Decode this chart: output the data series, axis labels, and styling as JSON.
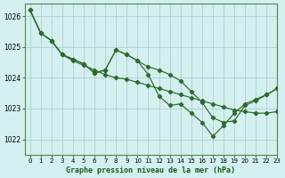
{
  "title": "Graphe pression niveau de la mer (hPa)",
  "bg_color": "#d4efef",
  "grid_color": "#b0d0d0",
  "line_color": "#2d6a2d",
  "marker_color": "#2d6a2d",
  "xlim": [
    -0.5,
    23
  ],
  "ylim": [
    1021.5,
    1026.4
  ],
  "yticks": [
    1022,
    1023,
    1024,
    1025,
    1026
  ],
  "xticks": [
    0,
    1,
    2,
    3,
    4,
    5,
    6,
    7,
    8,
    9,
    10,
    11,
    12,
    13,
    14,
    15,
    16,
    17,
    18,
    19,
    20,
    21,
    22,
    23
  ],
  "series": [
    {
      "name": "s1_smooth",
      "x": [
        0,
        1,
        2,
        3,
        4,
        5,
        6,
        7,
        8,
        9,
        10,
        11,
        12,
        13,
        14,
        15,
        16,
        17,
        18,
        19,
        20,
        21,
        22,
        23
      ],
      "y": [
        1026.2,
        1025.45,
        1025.2,
        1024.75,
        1024.55,
        1024.4,
        1024.25,
        1024.1,
        1024.0,
        1023.95,
        1023.85,
        1023.75,
        1023.65,
        1023.55,
        1023.45,
        1023.35,
        1023.25,
        1023.15,
        1023.05,
        1022.95,
        1022.9,
        1022.85,
        1022.85,
        1022.9
      ]
    },
    {
      "name": "s2_jagged_mid",
      "x": [
        0,
        1,
        2,
        3,
        4,
        5,
        6,
        7,
        8,
        9,
        10,
        11,
        12,
        13,
        14,
        15,
        16,
        17,
        18,
        19,
        20,
        21,
        22,
        23
      ],
      "y": [
        1026.2,
        1025.45,
        1025.2,
        1024.75,
        1024.6,
        1024.45,
        1024.15,
        1024.25,
        1024.9,
        1024.75,
        1024.55,
        1024.35,
        1024.25,
        1024.1,
        1023.9,
        1023.55,
        1023.2,
        1022.7,
        1022.55,
        1022.6,
        1023.1,
        1023.25,
        1023.45,
        1023.65
      ]
    },
    {
      "name": "s3_deep_dip",
      "x": [
        0,
        1,
        2,
        3,
        4,
        5,
        6,
        7,
        8,
        9,
        10,
        11,
        12,
        13,
        14,
        15,
        16,
        17,
        18,
        19,
        20,
        21,
        22,
        23
      ],
      "y": [
        1026.2,
        1025.45,
        1025.2,
        1024.75,
        1024.6,
        1024.45,
        1024.15,
        1024.25,
        1024.9,
        1024.75,
        1024.55,
        1024.1,
        1023.4,
        1023.1,
        1023.15,
        1022.85,
        1022.55,
        1022.1,
        1022.45,
        1022.85,
        1023.15,
        1023.3,
        1023.45,
        1023.65
      ]
    }
  ]
}
